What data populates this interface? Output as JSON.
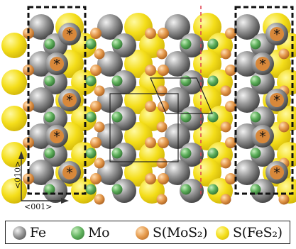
{
  "legend": {
    "fe": "Fe",
    "mo": "Mo",
    "s_mos2": "S(MoS₂)",
    "s_fes2": "S(FeS₂)"
  },
  "axes": {
    "vertical": "<010>",
    "horizontal": "<001>"
  },
  "colors": {
    "fe": "#8a8a8a",
    "mo": "#5daa5d",
    "s_mos2": "#e0964a",
    "s_fes2": "#f2dc1e",
    "dashed_boundary": "#111111",
    "interface_line": "#e04050"
  },
  "marker_symbol": "*"
}
